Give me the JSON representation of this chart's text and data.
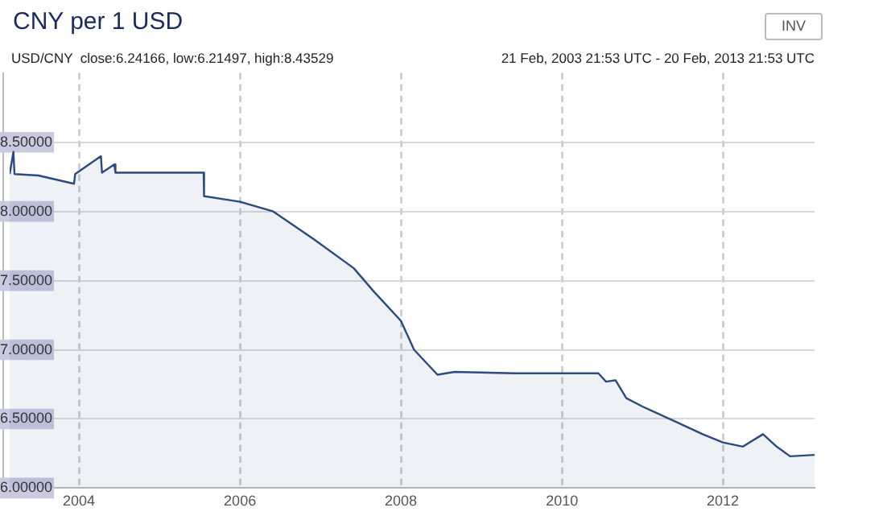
{
  "chart_data": {
    "type": "area",
    "title": "CNY per 1 USD",
    "subtitle": "USD/CNY  close:6.24166, low:6.21497, high:8.43529",
    "annotations": [
      "21 Feb, 2003 21:53 UTC - 20 Feb, 2013 21:53 UTC",
      "INV"
    ],
    "x": [
      "2003-02-21",
      "2003-03-10",
      "2003-03-15",
      "2003-07-01",
      "2003-12-10",
      "2003-12-15",
      "2004-04-10",
      "2004-04-15",
      "2004-06-10",
      "2004-06-15",
      "2005-07-20",
      "2005-07-22",
      "2006-01-01",
      "2006-06-01",
      "2006-12-01",
      "2007-06-01",
      "2007-09-01",
      "2008-01-01",
      "2008-03-01",
      "2008-06-15",
      "2008-09-01",
      "2009-06-01",
      "2010-06-15",
      "2010-07-20",
      "2010-09-01",
      "2010-10-20",
      "2011-01-01",
      "2011-06-01",
      "2011-10-01",
      "2012-01-01",
      "2012-04-01",
      "2012-07-01",
      "2012-09-01",
      "2012-11-01",
      "2013-02-20"
    ],
    "series": [
      {
        "color": "#2b4a7e",
        "values": [
          8.27,
          8.43,
          8.27,
          8.26,
          8.2,
          8.27,
          8.4,
          8.28,
          8.34,
          8.28,
          8.28,
          8.11,
          8.07,
          8.0,
          7.8,
          7.59,
          7.42,
          7.21,
          7.0,
          6.82,
          6.84,
          6.83,
          6.83,
          6.77,
          6.78,
          6.65,
          6.59,
          6.48,
          6.39,
          6.33,
          6.3,
          6.39,
          6.3,
          6.23,
          6.24
        ]
      }
    ],
    "xlim": [
      "2003-02-21",
      "2013-02-20"
    ],
    "xticks": [
      {
        "value": "2004",
        "label": "2004"
      },
      {
        "value": "2006",
        "label": "2006"
      },
      {
        "value": "2008",
        "label": "2008"
      },
      {
        "value": "2010",
        "label": "2010"
      },
      {
        "value": "2012",
        "label": "2012"
      }
    ],
    "ylim": [
      6,
      9
    ],
    "yticks": [
      {
        "value": 6,
        "label": "6.00000"
      },
      {
        "value": 6.5,
        "label": "6.50000"
      },
      {
        "value": 7,
        "label": "7.00000"
      },
      {
        "value": 7.5,
        "label": "7.50000"
      },
      {
        "value": 8,
        "label": "8.00000"
      },
      {
        "value": 8.5,
        "label": "8.50000"
      }
    ],
    "grid": true,
    "legend": false
  }
}
